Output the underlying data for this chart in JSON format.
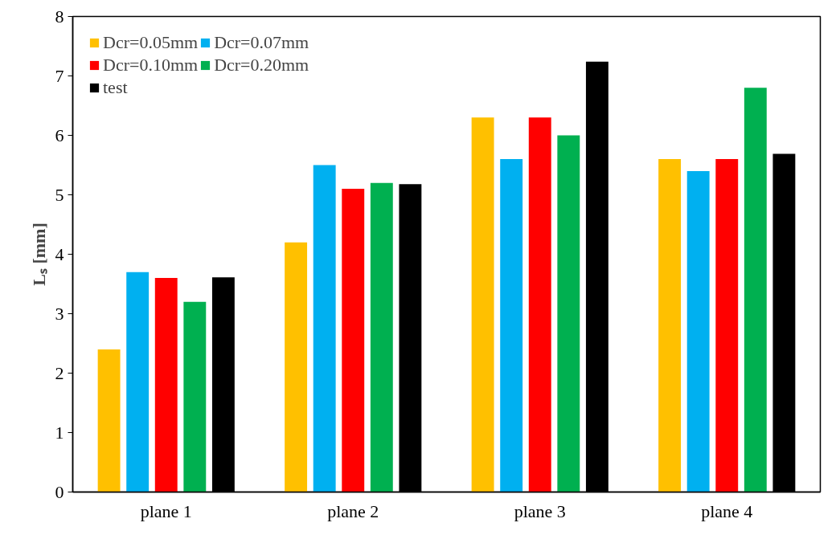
{
  "chart_data": {
    "type": "bar",
    "ylabel": "Lₛ [mm]",
    "categories": [
      "plane 1",
      "plane 2",
      "plane 3",
      "plane 4"
    ],
    "series": [
      {
        "name": "Dcr=0.05mm",
        "color": "#ffc000",
        "values": [
          2.4,
          4.2,
          6.3,
          5.6
        ]
      },
      {
        "name": "Dcr=0.07mm",
        "color": "#00b0f0",
        "values": [
          3.7,
          5.5,
          5.6,
          5.4
        ]
      },
      {
        "name": "Dcr=0.10mm",
        "color": "#ff0000",
        "values": [
          3.6,
          5.1,
          6.3,
          5.6
        ]
      },
      {
        "name": "Dcr=0.20mm",
        "color": "#00b050",
        "values": [
          3.2,
          5.2,
          6.0,
          6.8
        ]
      },
      {
        "name": "test",
        "color": "#000000",
        "values": [
          3.61,
          5.18,
          7.24,
          5.69
        ]
      }
    ],
    "ylim": [
      0,
      8
    ],
    "yticks": [
      0,
      1,
      2,
      3,
      4,
      5,
      6,
      7,
      8
    ],
    "legend": "top left",
    "grid": false
  }
}
